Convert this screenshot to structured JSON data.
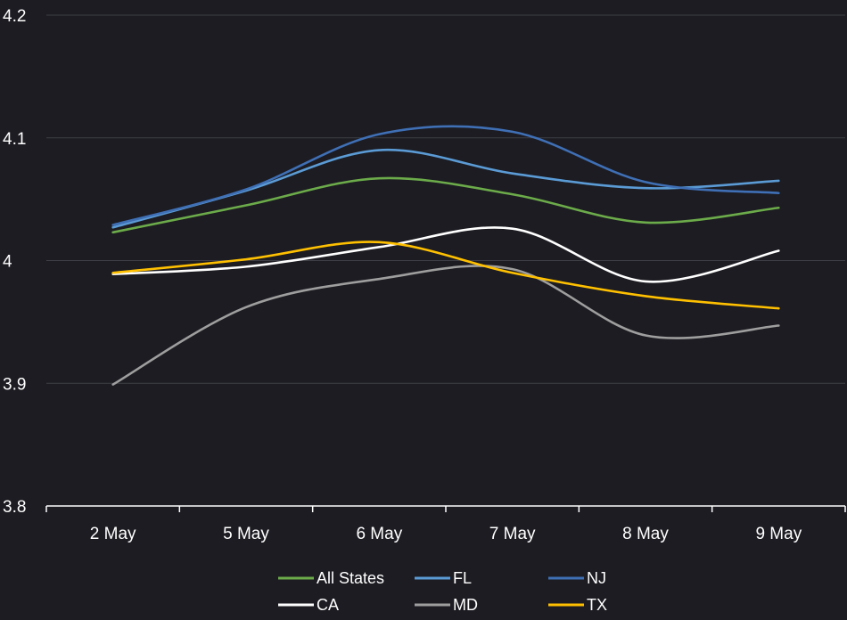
{
  "chart_data": {
    "type": "line",
    "categories": [
      "2 May",
      "5 May",
      "6 May",
      "7 May",
      "8 May",
      "9 May"
    ],
    "ylim": [
      3.8,
      4.2
    ],
    "yticks": [
      "3.8",
      "3.9",
      "4",
      "4.1",
      "4.2"
    ],
    "grid": true,
    "smooth": true,
    "legend_position": "bottom",
    "series": [
      {
        "name": "All States",
        "color": "#6cab4a",
        "values": [
          4.023,
          4.045,
          4.067,
          4.054,
          4.031,
          4.043
        ]
      },
      {
        "name": "FL",
        "color": "#5b9bd5",
        "values": [
          4.027,
          4.057,
          4.09,
          4.071,
          4.059,
          4.065
        ]
      },
      {
        "name": "NJ",
        "color": "#3f6fb5",
        "values": [
          4.029,
          4.058,
          4.103,
          4.105,
          4.064,
          4.055
        ]
      },
      {
        "name": "CA",
        "color": "#ffffff",
        "values": [
          3.989,
          3.995,
          4.011,
          4.026,
          3.983,
          4.008
        ]
      },
      {
        "name": "MD",
        "color": "#9e9e9e",
        "values": [
          3.899,
          3.962,
          3.985,
          3.993,
          3.939,
          3.947
        ]
      },
      {
        "name": "TX",
        "color": "#ffc000",
        "values": [
          3.99,
          4.001,
          4.015,
          3.99,
          3.971,
          3.961
        ]
      }
    ]
  }
}
